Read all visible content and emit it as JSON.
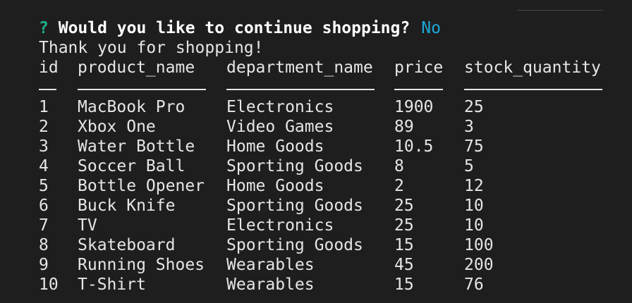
{
  "prompt": {
    "mark": "?",
    "question": "Would you like to continue shopping?",
    "answer": "No"
  },
  "message": "Thank you for shopping!",
  "table": {
    "headers": {
      "id": "id",
      "product_name": "product_name",
      "department_name": "department_name",
      "price": "price",
      "stock_quantity": "stock_quantity"
    },
    "rows": [
      {
        "id": "1",
        "product_name": "MacBook Pro",
        "department_name": "Electronics",
        "price": "1900",
        "stock_quantity": "25"
      },
      {
        "id": "2",
        "product_name": "Xbox One",
        "department_name": "Video Games",
        "price": "89",
        "stock_quantity": "3"
      },
      {
        "id": "3",
        "product_name": "Water Bottle",
        "department_name": "Home Goods",
        "price": "10.5",
        "stock_quantity": "75"
      },
      {
        "id": "4",
        "product_name": "Soccer Ball",
        "department_name": "Sporting Goods",
        "price": "8",
        "stock_quantity": "5"
      },
      {
        "id": "5",
        "product_name": "Bottle Opener",
        "department_name": "Home Goods",
        "price": "2",
        "stock_quantity": "12"
      },
      {
        "id": "6",
        "product_name": "Buck Knife",
        "department_name": "Sporting Goods",
        "price": "25",
        "stock_quantity": "10"
      },
      {
        "id": "7",
        "product_name": "TV",
        "department_name": "Electronics",
        "price": "25",
        "stock_quantity": "10"
      },
      {
        "id": "8",
        "product_name": "Skateboard",
        "department_name": "Sporting Goods",
        "price": "15",
        "stock_quantity": "100"
      },
      {
        "id": "9",
        "product_name": "Running Shoes",
        "department_name": "Wearables",
        "price": "45",
        "stock_quantity": "200"
      },
      {
        "id": "10",
        "product_name": "T-Shirt",
        "department_name": "Wearables",
        "price": "15",
        "stock_quantity": "76"
      }
    ]
  },
  "colors": {
    "background": "#1e1e1e",
    "text": "#e6e6e6",
    "prompt_mark": "#1fb08b",
    "answer": "#1ea7d6"
  }
}
